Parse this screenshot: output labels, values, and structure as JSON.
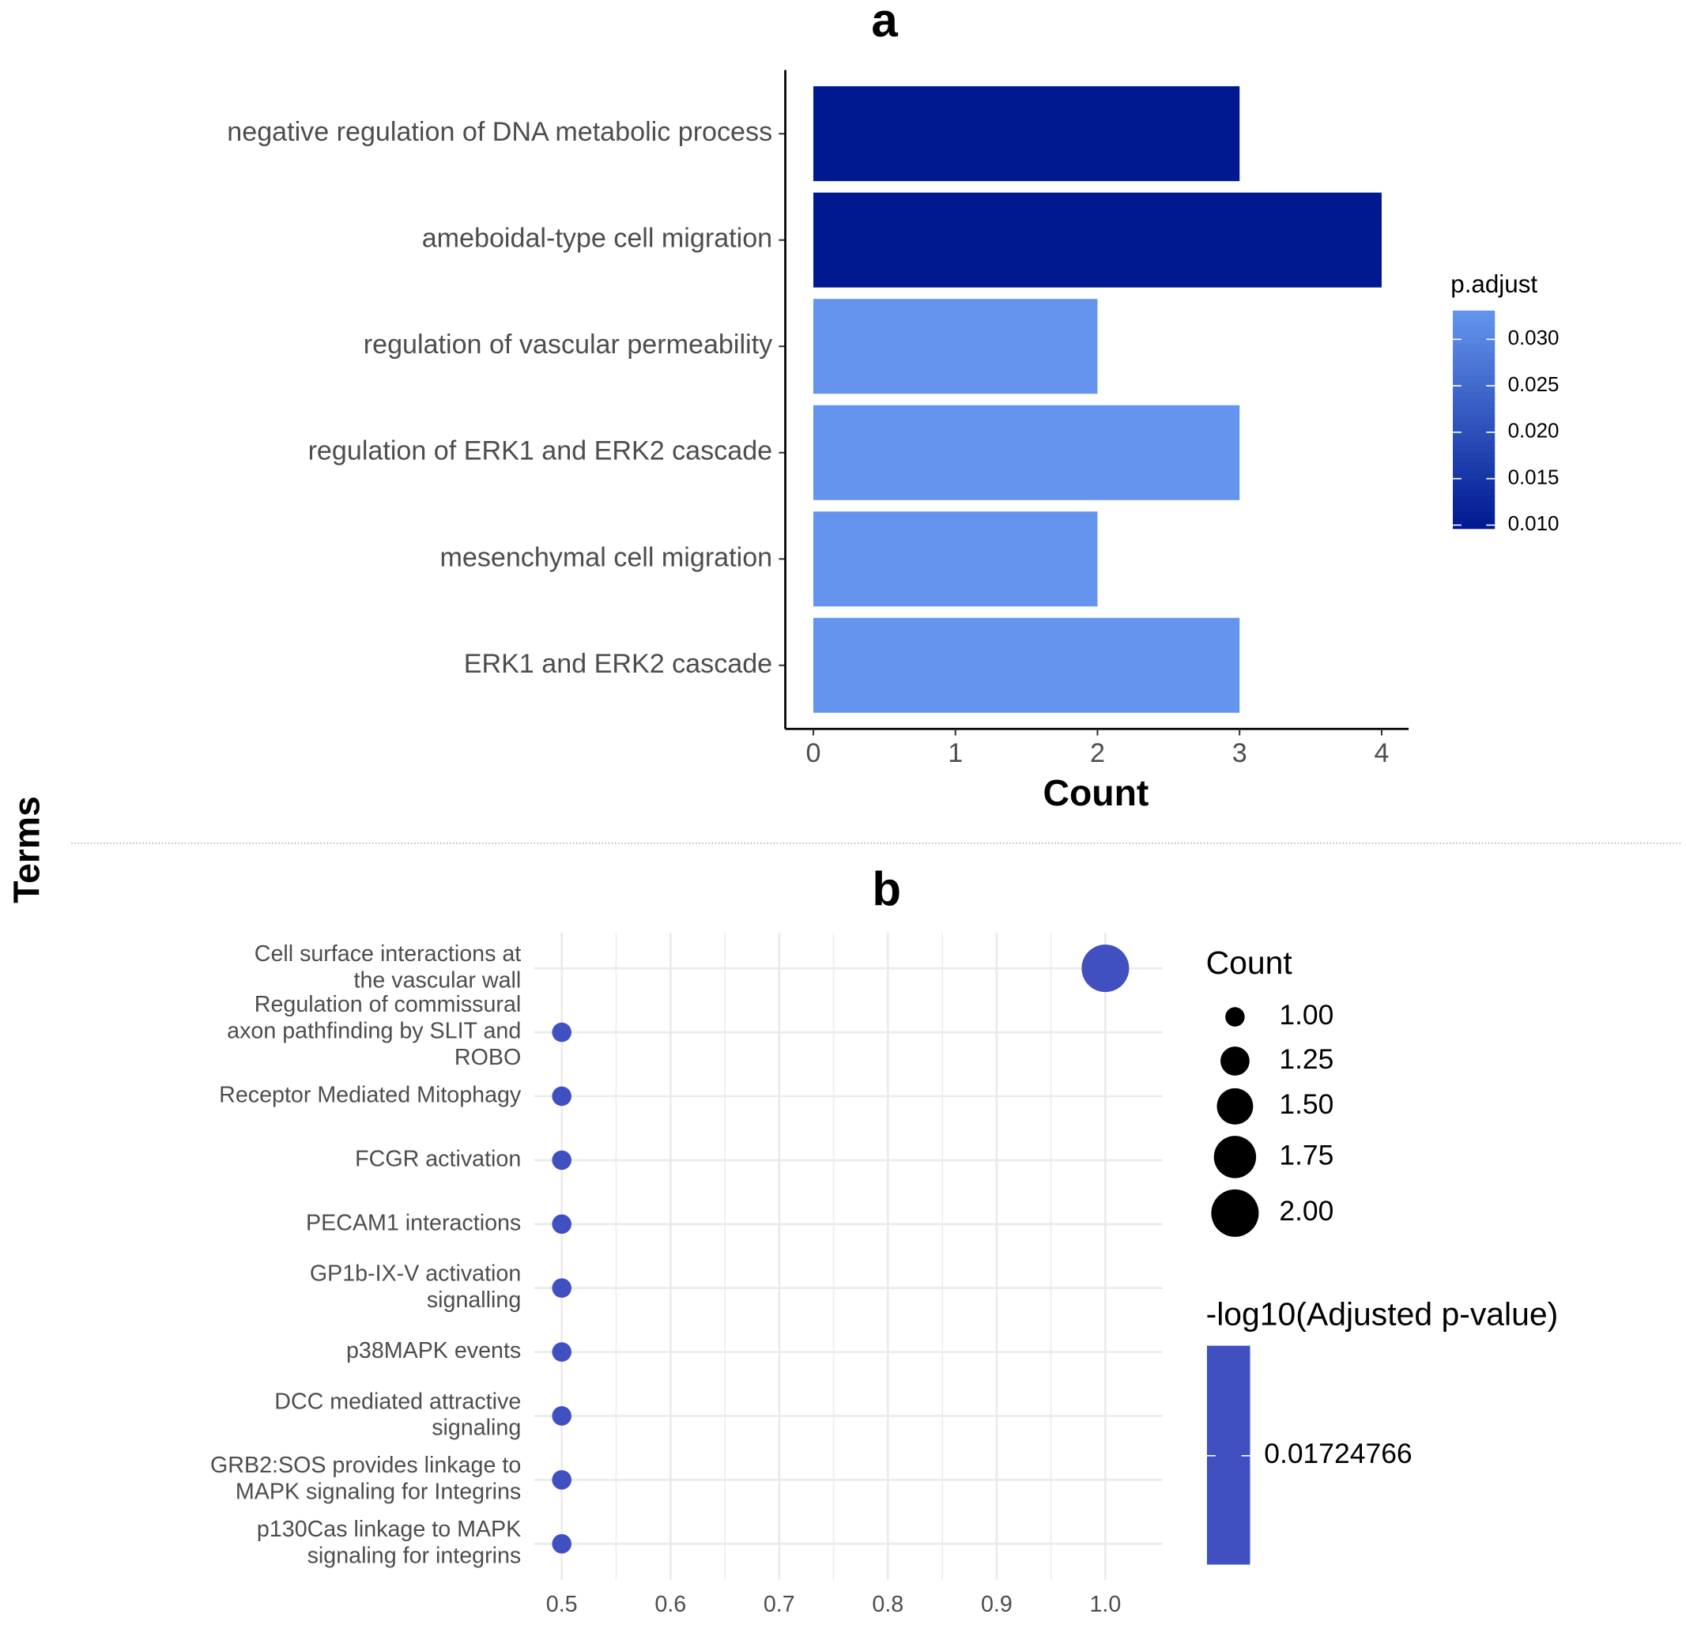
{
  "chart_data": [
    {
      "type": "bar",
      "orientation": "horizontal",
      "title": "a",
      "x_label": "Count",
      "y_label": "Terms",
      "categories": [
        "negative regulation of DNA metabolic process",
        "ameboidal-type cell migration",
        "regulation of vascular permeability",
        "regulation of ERK1 and ERK2 cascade",
        "mesenchymal cell migration",
        "ERK1 and ERK2 cascade"
      ],
      "values": [
        3,
        4,
        2,
        3,
        2,
        3
      ],
      "color_values": [
        0.0097,
        0.0097,
        0.033,
        0.033,
        0.033,
        0.033
      ],
      "xlim": [
        0,
        4
      ],
      "xticks": [
        0,
        1,
        2,
        3,
        4
      ],
      "legend_title": "p.adjust",
      "colorbar_lim": [
        0.00965,
        0.0331
      ],
      "colorbar_ticks": [
        {
          "value": 0.01,
          "label": "0.010"
        },
        0.015,
        {
          "value": 0.02,
          "label": "0.020"
        },
        0.025,
        {
          "value": 0.03,
          "label": "0.030"
        }
      ],
      "colors": [
        "#001890",
        "#6495ed"
      ]
    },
    {
      "type": "scatter",
      "title": "b",
      "categories": [
        [
          "Cell surface interactions at",
          "the vascular wall"
        ],
        [
          "Regulation of commissural",
          "axon pathfinding by SLIT and",
          "ROBO"
        ],
        [
          "Receptor Mediated Mitophagy"
        ],
        [
          "FCGR activation"
        ],
        [
          "PECAM1 interactions"
        ],
        [
          "GP1b-IX-V activation",
          "signalling"
        ],
        [
          "p38MAPK events"
        ],
        [
          "DCC mediated attractive",
          "signaling"
        ],
        [
          "GRB2:SOS provides linkage to",
          "MAPK signaling for Integrins"
        ],
        [
          "p130Cas linkage to MAPK",
          "signaling for integrins"
        ]
      ],
      "x": [
        1,
        0.5,
        0.5,
        0.5,
        0.5,
        0.5,
        0.5,
        0.5,
        0.5,
        0.5
      ],
      "sizes": [
        2,
        1,
        1,
        1,
        1,
        1,
        1,
        1,
        1,
        1
      ],
      "xlim": [
        0.4745,
        1.0528
      ],
      "xticks": [
        0.5,
        0.6,
        0.7,
        0.8,
        0.9,
        {
          "value": 1,
          "label": "1.0"
        }
      ],
      "grid": true,
      "size_legend_title": "Count",
      "size_ticks": [
        {
          "value": 1,
          "label": "1.00"
        },
        1.25,
        {
          "value": 1.5,
          "label": "1.50"
        },
        1.75,
        {
          "value": 2,
          "label": "2.00"
        }
      ],
      "color_legend_title": "-log10(Adjusted p-value)",
      "color_ticks": [
        0.01724766
      ],
      "color": "#4150c0"
    }
  ]
}
